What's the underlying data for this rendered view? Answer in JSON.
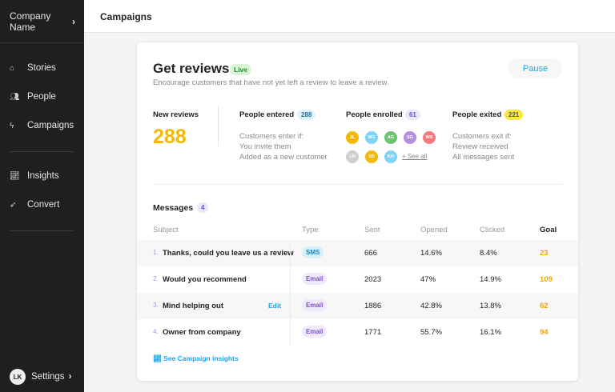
{
  "sidebar": {
    "company": "Company Name",
    "items": [
      {
        "label": "Stories",
        "icon": "home-icon"
      },
      {
        "label": "People",
        "icon": "people-icon"
      },
      {
        "label": "Campaigns",
        "icon": "bolt-icon"
      },
      {
        "label": "Insights",
        "icon": "chart-icon"
      },
      {
        "label": "Convert",
        "icon": "rocket-icon"
      }
    ],
    "user_initials": "LK",
    "settings": "Settings"
  },
  "header": {
    "title": "Campaigns"
  },
  "campaign": {
    "title": "Get reviews",
    "status": "Live",
    "description": "Encourage customers that have not yet left a review to leave a review.",
    "pause": "Pause",
    "new_reviews_label": "New reviews",
    "new_reviews": "288",
    "entered_label": "People entered",
    "entered": "288",
    "enter_rules": [
      "Customers enter if:",
      "You invite them",
      "Added as a new customer"
    ],
    "enrolled_label": "People enrolled",
    "enrolled": "61",
    "avatars": [
      {
        "i": "JL",
        "c": "#f5b800"
      },
      {
        "i": "WG",
        "c": "#7fd3f5"
      },
      {
        "i": "AG",
        "c": "#6cc46c"
      },
      {
        "i": "SG",
        "c": "#b48fdc"
      },
      {
        "i": "WS",
        "c": "#f47b7b"
      },
      {
        "i": "LN",
        "c": "#cfcfcf"
      },
      {
        "i": "SD",
        "c": "#f5b800"
      },
      {
        "i": "KH",
        "c": "#7fd3f5"
      }
    ],
    "see_all": "+ See all",
    "exited_label": "People exited",
    "exited": "221",
    "exit_rules": [
      "Customers exit if:",
      "Review received",
      "All messages sent"
    ]
  },
  "messages": {
    "label": "Messages",
    "count": "4",
    "headers": [
      "Subject",
      "Type",
      "Sent",
      "Opened",
      "Clicked",
      "Goal"
    ],
    "rows": [
      {
        "n": "1.",
        "subject": "Thanks, could you leave us a review",
        "type": "SMS",
        "sent": "666",
        "opened": "14.6%",
        "clicked": "8.4%",
        "goal": "23"
      },
      {
        "n": "2.",
        "subject": "Would you recommend",
        "type": "Email",
        "sent": "2023",
        "opened": "47%",
        "clicked": "14.9%",
        "goal": "109"
      },
      {
        "n": "3.",
        "subject": "Mind helping out",
        "type": "Email",
        "sent": "1886",
        "opened": "42.8%",
        "clicked": "13.8%",
        "goal": "62",
        "edit": "Edit"
      },
      {
        "n": "4.",
        "subject": "Owner from company",
        "type": "Email",
        "sent": "1771",
        "opened": "55.7%",
        "clicked": "16.1%",
        "goal": "94"
      }
    ],
    "insights_link": "See Campaign insights"
  },
  "colors": {
    "accent": "#1aa7e6",
    "goal": "#f0a800",
    "sidebar": "#1f1f1f"
  }
}
